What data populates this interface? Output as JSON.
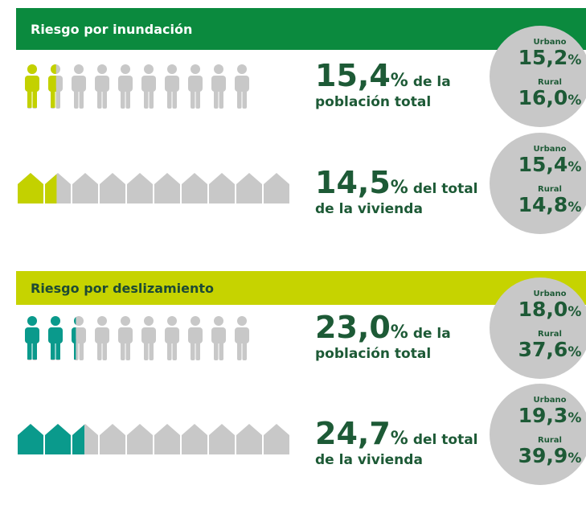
{
  "unit": "%",
  "sections": [
    {
      "title": "Riesgo por inundación",
      "color": "#c3d100",
      "bar_color": "#0b8a3e",
      "title_color": "#ffffff",
      "rows": [
        {
          "icon": "person",
          "value": 15.4,
          "value_label": "15,4",
          "caption": [
            "de la",
            "población total"
          ],
          "urban_label": "Urbano",
          "urban": "15,2",
          "rural_label": "Rural",
          "rural": "16,0"
        },
        {
          "icon": "house",
          "value": 14.5,
          "value_label": "14,5",
          "caption": [
            "del total",
            "de la vivienda"
          ],
          "urban_label": "Urbano",
          "urban": "15,4",
          "rural_label": "Rural",
          "rural": "14,8"
        }
      ]
    },
    {
      "title": "Riesgo por deslizamiento",
      "color": "#0a9a8c",
      "bar_color": "#c6d300",
      "title_color": "#1d4a34",
      "rows": [
        {
          "icon": "person",
          "value": 23.0,
          "value_label": "23,0",
          "caption": [
            "de la",
            "población total"
          ],
          "urban_label": "Urbano",
          "urban": "18,0",
          "rural_label": "Rural",
          "rural": "37,6"
        },
        {
          "icon": "house",
          "value": 24.7,
          "value_label": "24,7",
          "caption": [
            "del total",
            "de la vivienda"
          ],
          "urban_label": "Urbano",
          "urban": "19,3",
          "rural_label": "Rural",
          "rural": "39,9"
        }
      ]
    }
  ]
}
